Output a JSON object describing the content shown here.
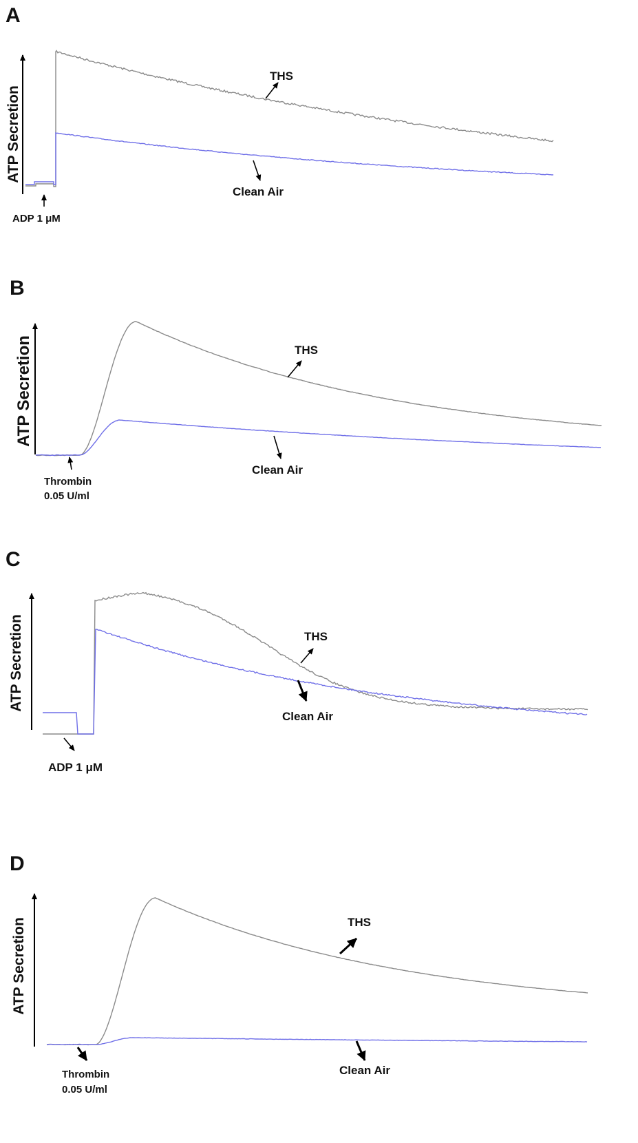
{
  "chart_data": [
    {
      "type": "line",
      "panel": "A",
      "ylabel": "ATP Secretion",
      "annotations": {
        "stimulus": "ADP 1 μM",
        "ths": "THS",
        "air": "Clean Air"
      },
      "series": [
        {
          "name": "THS",
          "color": "#8a8a8a"
        },
        {
          "name": "Clean Air",
          "color": "#6f6fe8"
        }
      ]
    },
    {
      "type": "line",
      "panel": "B",
      "ylabel": "ATP Secretion",
      "annotations": {
        "stimulus_line1": "Thrombin",
        "stimulus_line2": "0.05 U/ml",
        "ths": "THS",
        "air": "Clean Air"
      },
      "series": [
        {
          "name": "THS",
          "color": "#8a8a8a"
        },
        {
          "name": "Clean Air",
          "color": "#6f6fe8"
        }
      ]
    },
    {
      "type": "line",
      "panel": "C",
      "ylabel": "ATP Secretion",
      "annotations": {
        "stimulus": "ADP 1 μM",
        "ths": "THS",
        "air": "Clean Air"
      },
      "series": [
        {
          "name": "THS",
          "color": "#8a8a8a"
        },
        {
          "name": "Clean Air",
          "color": "#6f6fe8"
        }
      ]
    },
    {
      "type": "line",
      "panel": "D",
      "ylabel": "ATP Secretion",
      "annotations": {
        "stimulus_line1": "Thrombin",
        "stimulus_line2": "0.05 U/ml",
        "ths": "THS",
        "air": "Clean Air"
      },
      "series": [
        {
          "name": "THS",
          "color": "#8a8a8a"
        },
        {
          "name": "Clean Air",
          "color": "#6f6fe8"
        }
      ]
    }
  ]
}
